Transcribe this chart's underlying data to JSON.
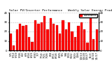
{
  "title": "Solar PV/Inverter Performance   Weekly Solar Energy Production",
  "bar_color": "#ff0000",
  "edge_color": "#aa0000",
  "background_color": "#ffffff",
  "grid_color": "#888888",
  "values": [
    18,
    5,
    22,
    28,
    26,
    27,
    14,
    9,
    32,
    28,
    30,
    36,
    22,
    34,
    28,
    27,
    18,
    32,
    22,
    30,
    20,
    14,
    26,
    30,
    22,
    8,
    36,
    12,
    22
  ],
  "xlabels": [
    "5/5",
    "5/12",
    "5/19",
    "5/26",
    "6/2",
    "6/9",
    "6/16",
    "6/23",
    "6/30",
    "7/7",
    "7/14",
    "7/21",
    "7/28",
    "8/4",
    "8/11",
    "8/18",
    "8/25",
    "9/1",
    "9/8",
    "9/15",
    "9/22",
    "9/29",
    "10/6",
    "10/13",
    "10/20",
    "10/27",
    "11/3",
    "11/10",
    "11/17"
  ],
  "ylim": [
    0,
    40
  ],
  "yticks": [
    0,
    10,
    20,
    30,
    40
  ],
  "ytick_labels": [
    "0",
    "10",
    "20",
    "30",
    "40"
  ],
  "legend_label": "kWh/Week",
  "title_fontsize": 3.2,
  "tick_fontsize": 2.8,
  "legend_fontsize": 2.5
}
